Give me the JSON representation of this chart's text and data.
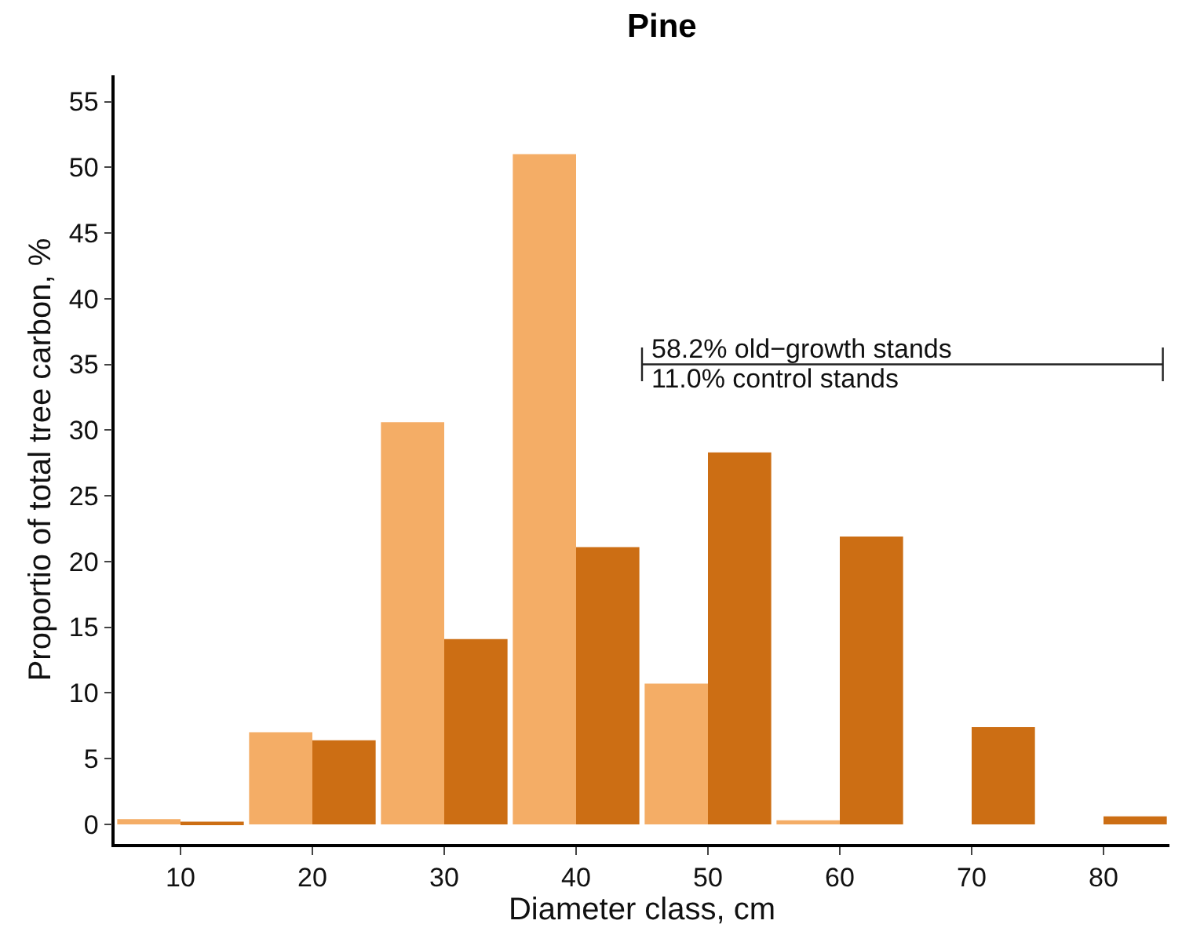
{
  "chart_data": {
    "type": "bar",
    "title": "Pine",
    "xlabel": "Diameter class, cm",
    "ylabel": "Proportio of total tree carbon, %",
    "categories": [
      "10",
      "20",
      "30",
      "40",
      "50",
      "60",
      "70",
      "80"
    ],
    "series": [
      {
        "color": "#f4ad66",
        "values": [
          0.4,
          7.0,
          30.6,
          51.0,
          10.7,
          0.3,
          0,
          0
        ]
      },
      {
        "color": "#cc6e14",
        "values": [
          0.2,
          6.4,
          14.1,
          21.1,
          28.3,
          21.9,
          7.4,
          0.6
        ]
      }
    ],
    "ylim": [
      -1.5,
      57
    ],
    "yticks": [
      0,
      5,
      10,
      15,
      20,
      25,
      30,
      35,
      40,
      45,
      50,
      55
    ],
    "annotations": [
      "58.2% old−growth stands",
      "11.0% control stands"
    ]
  }
}
